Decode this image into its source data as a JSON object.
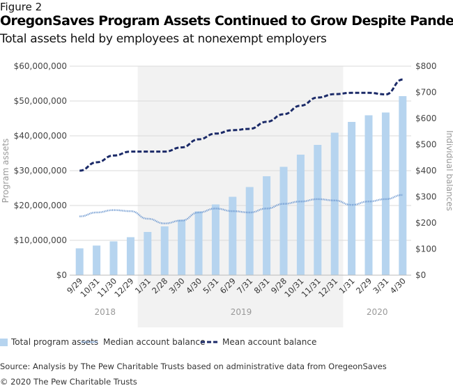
{
  "figure_label": "Figure 2",
  "source": "Source: Analysis by The Pew Charitable Trusts based on administrative data from OregeonSaves",
  "copyright": "© 2020 The Pew Charitable Trusts",
  "chart_data": {
    "type": "bar+line",
    "title": "OregonSaves Program Assets Continued to Grow Despite Pandemic",
    "subtitle": "Total assets held by employees at nonexempt employers",
    "ylabel": "Program assets",
    "y2label": "Individual balances",
    "ylim": [
      0,
      60000000
    ],
    "y2lim": [
      0,
      800
    ],
    "yticks": [
      "$0",
      "$10,000,000",
      "$20,000,000",
      "$30,000,000",
      "$40,000,000",
      "$50,000,000",
      "$60,000,000"
    ],
    "y2ticks": [
      "$0",
      "$100",
      "$200",
      "$300",
      "$400",
      "$500",
      "$600",
      "$700",
      "$800"
    ],
    "categories": [
      "9/29",
      "10/31",
      "11/30",
      "12/29",
      "1/31",
      "2/28",
      "3/30",
      "4/30",
      "5/31",
      "6/29",
      "7/31",
      "8/31",
      "9/28",
      "10/31",
      "11/31",
      "12/31",
      "1/31",
      "2/29",
      "3/31",
      "4/30"
    ],
    "year_groups": [
      {
        "label": "2018",
        "count": 4
      },
      {
        "label": "2019",
        "count": 12
      },
      {
        "label": "2020",
        "count": 4
      }
    ],
    "grid": true,
    "legend_placement": "bottom",
    "series": [
      {
        "name": "Total program assets",
        "type": "bar",
        "axis": "left",
        "color": "#b6d4ef",
        "values": [
          7700000,
          8500000,
          9700000,
          10900000,
          12400000,
          14000000,
          15900000,
          18300000,
          20300000,
          22500000,
          25300000,
          28400000,
          31100000,
          34600000,
          37400000,
          40900000,
          44000000,
          45900000,
          46700000,
          51400000
        ]
      },
      {
        "name": "Median account balance",
        "type": "line",
        "style": "dotted",
        "axis": "right",
        "color": "#6d98d0",
        "values": [
          225,
          240,
          249,
          245,
          216,
          198,
          209,
          240,
          255,
          245,
          240,
          255,
          273,
          282,
          291,
          286,
          269,
          282,
          291,
          307
        ]
      },
      {
        "name": "Mean account balance",
        "type": "line",
        "style": "dashed",
        "axis": "right",
        "color": "#1b2a68",
        "values": [
          400,
          432,
          458,
          473,
          473,
          473,
          489,
          520,
          542,
          555,
          560,
          587,
          616,
          649,
          680,
          693,
          698,
          698,
          692,
          749
        ]
      }
    ]
  }
}
